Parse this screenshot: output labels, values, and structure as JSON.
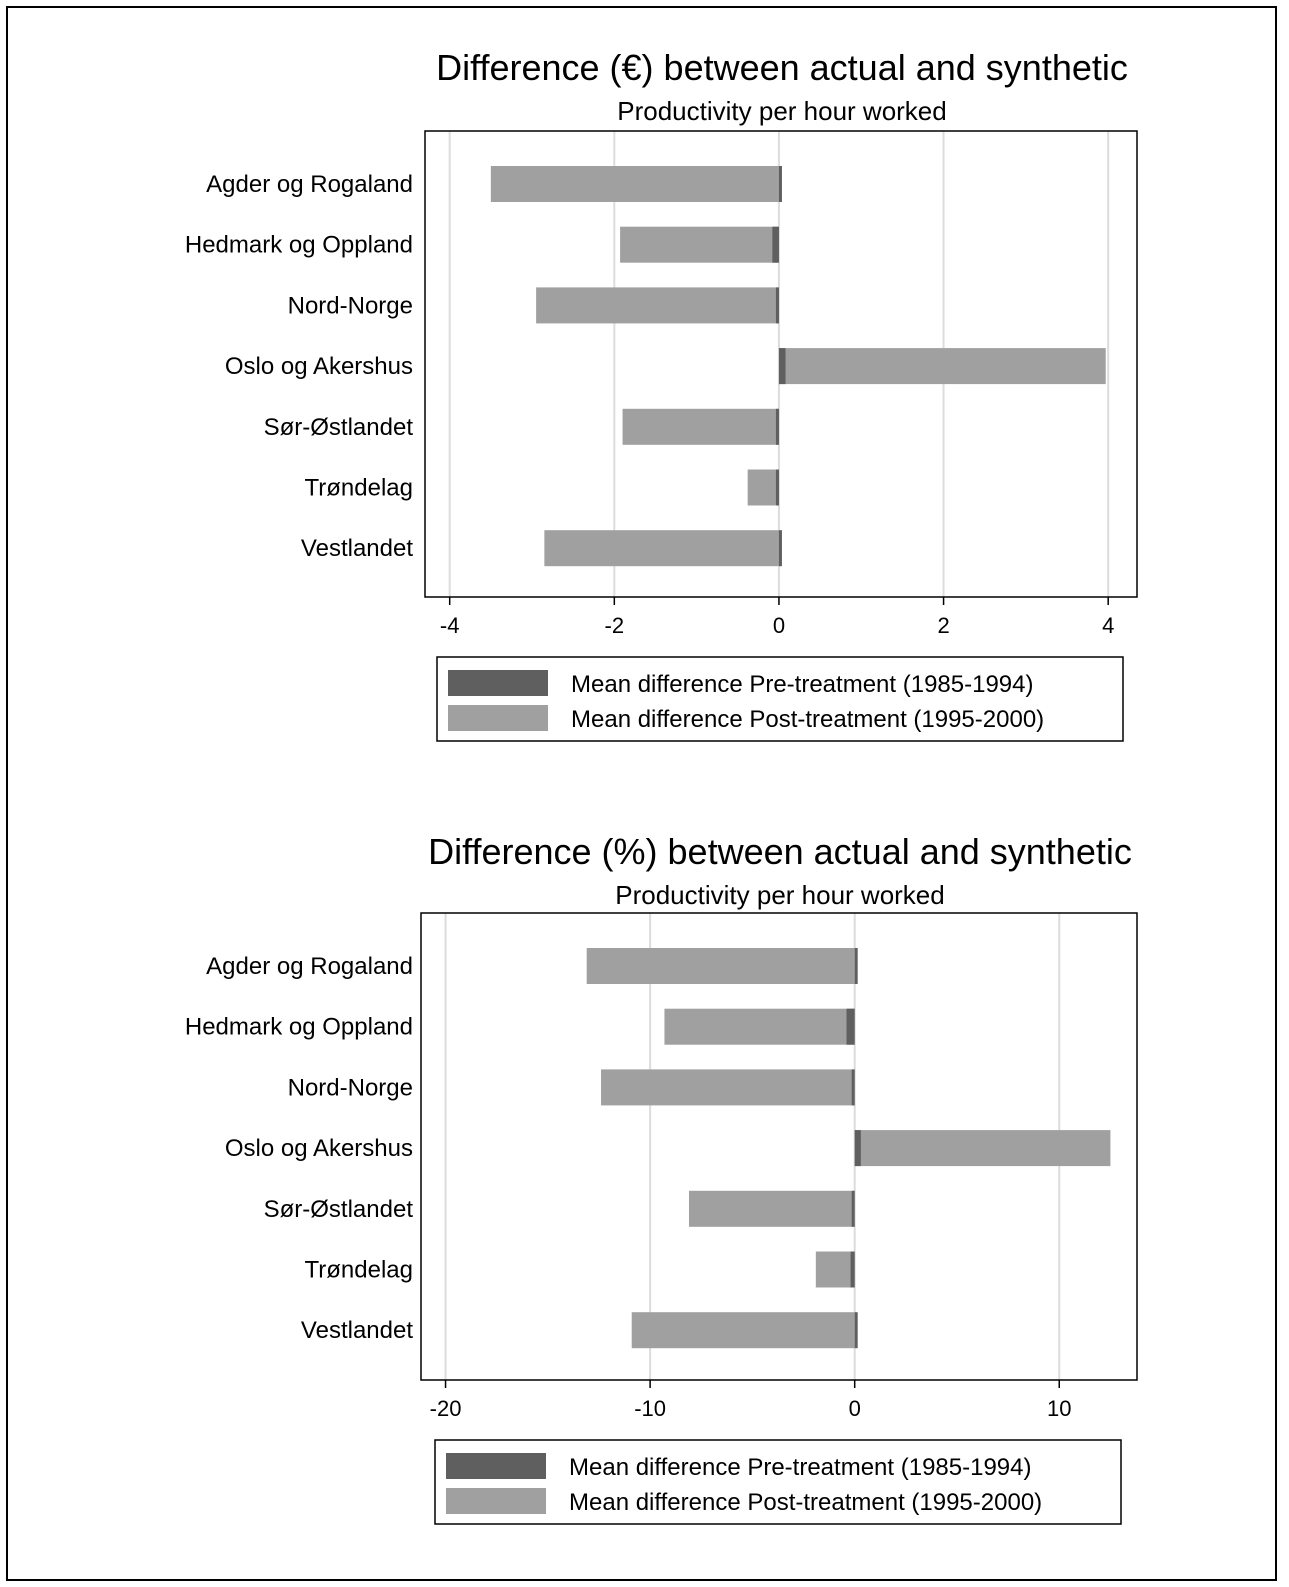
{
  "colors": {
    "pre": "#5f5f5f",
    "post": "#a0a0a0",
    "grid": "#dcdcdc",
    "axis": "#000000"
  },
  "chart_data": [
    {
      "type": "bar",
      "orientation": "horizontal",
      "title": "Difference (€) between actual and synthetic",
      "subtitle": "Productivity per hour worked",
      "categories": [
        "Agder og Rogaland",
        "Hedmark og Oppland",
        "Nord-Norge",
        "Oslo og Akershus",
        "Sør-Østlandet",
        "Trøndelag",
        "Vestlandet"
      ],
      "series": [
        {
          "name": "Mean difference Pre-treatment (1985-1994)",
          "values": [
            0.02,
            -0.08,
            -0.02,
            0.08,
            -0.02,
            -0.03,
            0.02
          ]
        },
        {
          "name": "Mean difference Post-treatment (1995-2000)",
          "values": [
            -3.5,
            -1.93,
            -2.95,
            3.97,
            -1.9,
            -0.38,
            -2.85
          ]
        }
      ],
      "xlim": [
        -4.3,
        4.35
      ],
      "xticks": [
        -4,
        -2,
        0,
        2,
        4
      ],
      "tick_labels": [
        "-4",
        "-2",
        "0",
        "2",
        "4"
      ],
      "grid": true,
      "legend_position": "bottom"
    },
    {
      "type": "bar",
      "orientation": "horizontal",
      "title": "Difference (%) between actual and synthetic",
      "subtitle": "Productivity per hour worked",
      "categories": [
        "Agder og Rogaland",
        "Hedmark og Oppland",
        "Nord-Norge",
        "Oslo og Akershus",
        "Sør-Østlandet",
        "Trøndelag",
        "Vestlandet"
      ],
      "series": [
        {
          "name": "Mean difference Pre-treatment (1985-1994)",
          "values": [
            0.05,
            -0.4,
            -0.05,
            0.3,
            -0.05,
            -0.2,
            0.05
          ]
        },
        {
          "name": "Mean difference Post-treatment (1995-2000)",
          "values": [
            -13.1,
            -9.3,
            -12.4,
            12.5,
            -8.1,
            -1.9,
            -10.9
          ]
        }
      ],
      "xlim": [
        -21.2,
        13.8
      ],
      "xticks": [
        -20,
        -10,
        0,
        10
      ],
      "tick_labels": [
        "-20",
        "-10",
        "0",
        "10"
      ],
      "grid": true,
      "legend_position": "bottom"
    }
  ]
}
